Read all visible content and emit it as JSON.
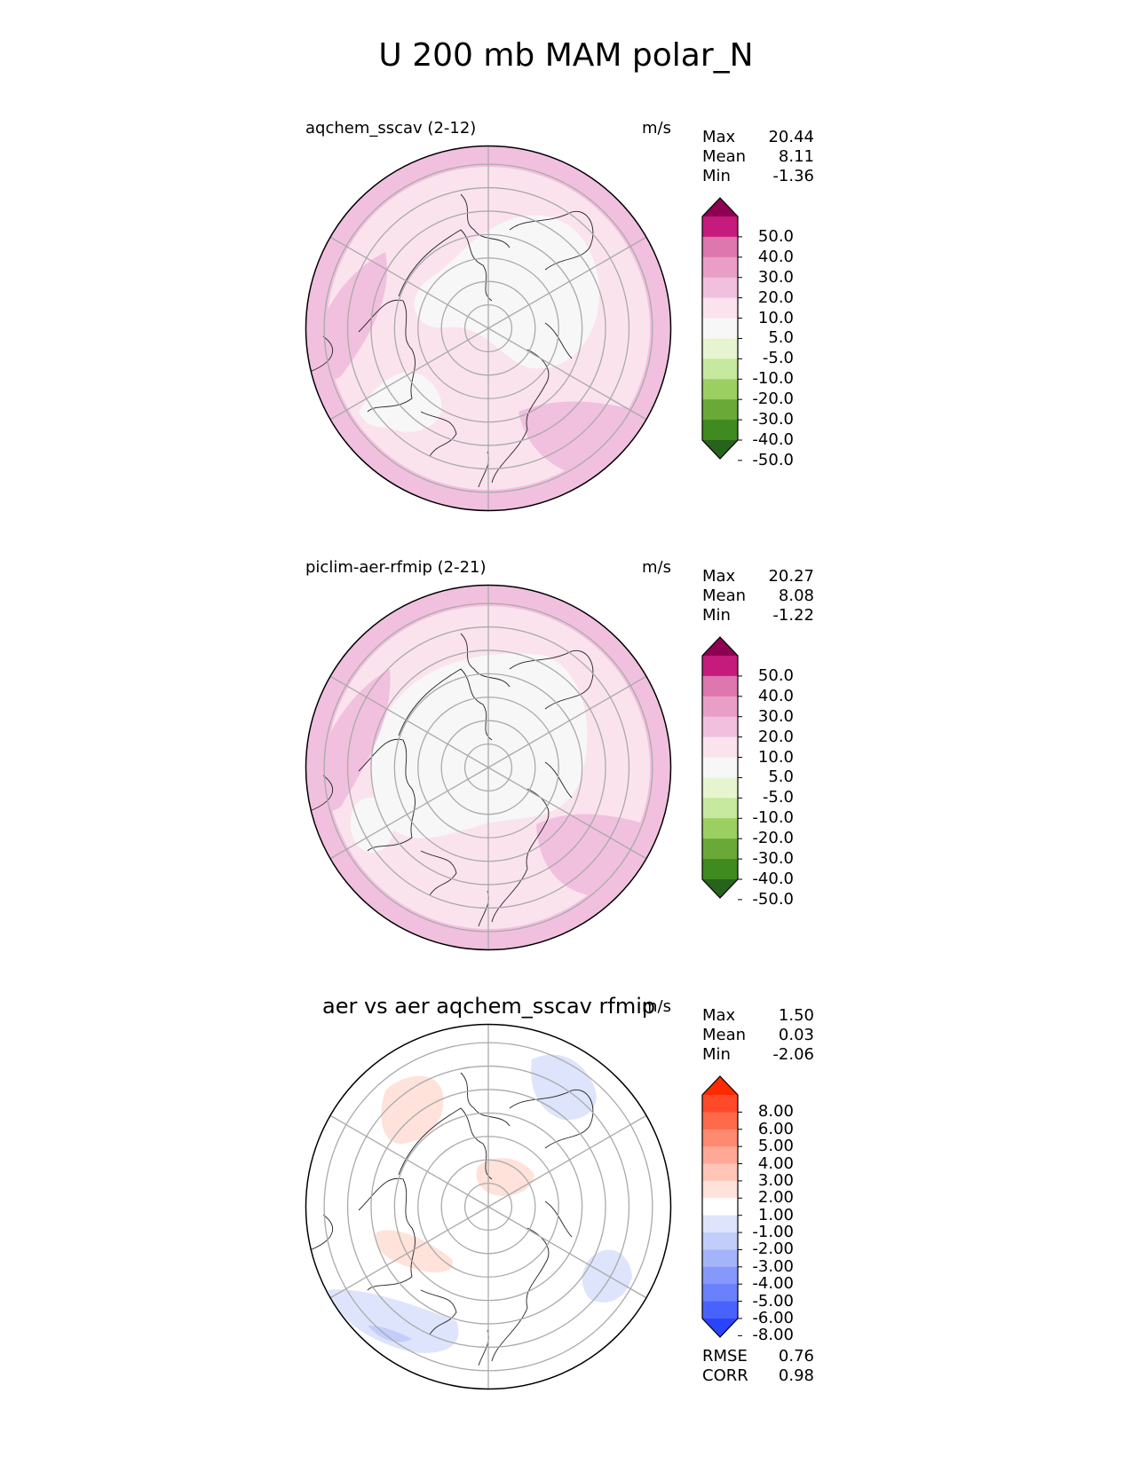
{
  "title": "U 200 mb MAM polar_N",
  "panels": [
    {
      "label": "aqchem_sscav (2-12)",
      "units": "m/s",
      "stats": [
        {
          "name": "Max",
          "value": "20.44"
        },
        {
          "name": "Mean",
          "value": "8.11"
        },
        {
          "name": "Min",
          "value": "-1.36"
        }
      ],
      "colorbar": {
        "ticks": [
          "50.0",
          "40.0",
          "30.0",
          "20.0",
          "10.0",
          "5.0",
          "-5.0",
          "-10.0",
          "-20.0",
          "-30.0",
          "-40.0",
          "-50.0"
        ],
        "colors": [
          "#8e0152",
          "#c51b7d",
          "#de77ae",
          "#e99ec8",
          "#f1c0de",
          "#fbe3ee",
          "#f7f7f7",
          "#e6f5d0",
          "#c7e89f",
          "#9bcf62",
          "#6aa937",
          "#3f8b20",
          "#27631c"
        ]
      }
    },
    {
      "label": "piclim-aer-rfmip (2-21)",
      "units": "m/s",
      "stats": [
        {
          "name": "Max",
          "value": "20.27"
        },
        {
          "name": "Mean",
          "value": "8.08"
        },
        {
          "name": "Min",
          "value": "-1.22"
        }
      ],
      "colorbar": {
        "ticks": [
          "50.0",
          "40.0",
          "30.0",
          "20.0",
          "10.0",
          "5.0",
          "-5.0",
          "-10.0",
          "-20.0",
          "-30.0",
          "-40.0",
          "-50.0"
        ],
        "colors": [
          "#8e0152",
          "#c51b7d",
          "#de77ae",
          "#e99ec8",
          "#f1c0de",
          "#fbe3ee",
          "#f7f7f7",
          "#e6f5d0",
          "#c7e89f",
          "#9bcf62",
          "#6aa937",
          "#3f8b20",
          "#27631c"
        ]
      }
    },
    {
      "label": "aer vs aer aqchem_sscav rfmip",
      "units": "m/s",
      "stats": [
        {
          "name": "Max",
          "value": "1.50"
        },
        {
          "name": "Mean",
          "value": "0.03"
        },
        {
          "name": "Min",
          "value": "-2.06"
        }
      ],
      "extra_stats": [
        {
          "name": "RMSE",
          "value": "0.76"
        },
        {
          "name": "CORR",
          "value": "0.98"
        }
      ],
      "colorbar": {
        "ticks": [
          "8.00",
          "6.00",
          "5.00",
          "4.00",
          "3.00",
          "2.00",
          "1.00",
          "-1.00",
          "-2.00",
          "-3.00",
          "-4.00",
          "-5.00",
          "-6.00",
          "-8.00"
        ],
        "colors": [
          "#ff2a00",
          "#ff4a2a",
          "#ff6a4a",
          "#ff8a70",
          "#ffa898",
          "#ffc6b8",
          "#ffe2da",
          "#ffffff",
          "#dde4fb",
          "#c2cdfa",
          "#a5b4fa",
          "#8699fb",
          "#6a80fc",
          "#4a62fd",
          "#2a44fe"
        ]
      }
    }
  ],
  "chart_data": [
    {
      "type": "heatmap",
      "projection": "north-polar-stereographic",
      "title": "aqchem_sscav (2-12)",
      "units": "m/s",
      "max": 20.44,
      "mean": 8.11,
      "min": -1.36,
      "levels": [
        -50,
        -40,
        -30,
        -20,
        -10,
        -5,
        5,
        10,
        20,
        30,
        40,
        50
      ]
    },
    {
      "type": "heatmap",
      "projection": "north-polar-stereographic",
      "title": "piclim-aer-rfmip (2-21)",
      "units": "m/s",
      "max": 20.27,
      "mean": 8.08,
      "min": -1.22,
      "levels": [
        -50,
        -40,
        -30,
        -20,
        -10,
        -5,
        5,
        10,
        20,
        30,
        40,
        50
      ]
    },
    {
      "type": "heatmap",
      "projection": "north-polar-stereographic",
      "title": "aer vs aer aqchem_sscav rfmip",
      "units": "m/s",
      "max": 1.5,
      "mean": 0.03,
      "min": -2.06,
      "rmse": 0.76,
      "corr": 0.98,
      "levels": [
        -8,
        -6,
        -5,
        -4,
        -3,
        -2,
        -1,
        1,
        2,
        3,
        4,
        5,
        6,
        8
      ]
    }
  ]
}
